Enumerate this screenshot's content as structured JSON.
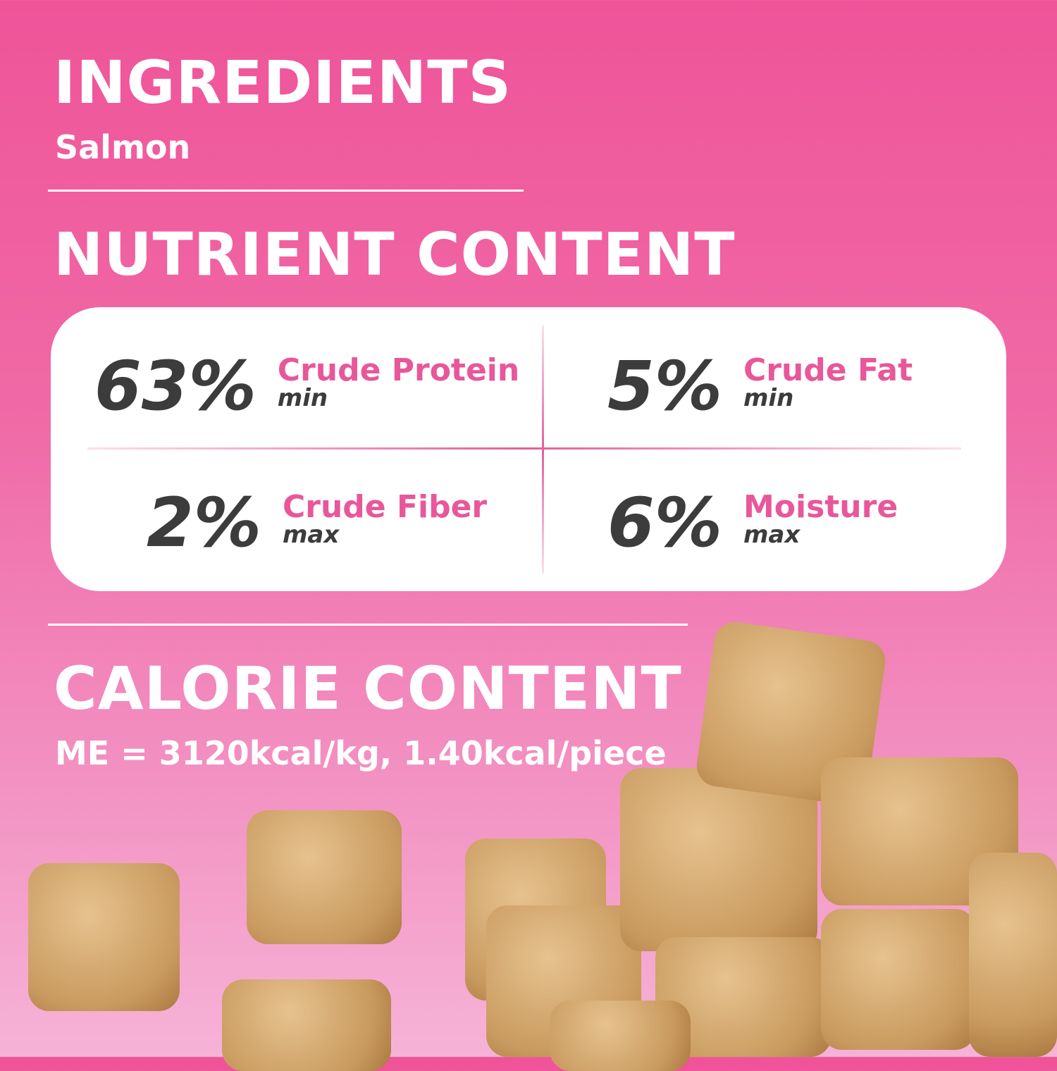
{
  "ingredients": {
    "title": "INGREDIENTS",
    "value": "Salmon"
  },
  "nutrient": {
    "title": "NUTRIENT CONTENT",
    "items": [
      {
        "value": "63%",
        "name": "Crude Protein",
        "qualifier": "min"
      },
      {
        "value": "5%",
        "name": "Crude Fat",
        "qualifier": "min"
      },
      {
        "value": "2%",
        "name": "Crude Fiber",
        "qualifier": "max"
      },
      {
        "value": "6%",
        "name": "Moisture",
        "qualifier": "max"
      }
    ]
  },
  "calorie": {
    "title": "CALORIE CONTENT",
    "value": "ME = 3120kcal/kg, 1.40kcal/piece"
  },
  "colors": {
    "accent": "#e8579a",
    "dark": "#3c3c3c",
    "background_top": "#ef5499",
    "background_bottom": "#f6b3d7"
  }
}
